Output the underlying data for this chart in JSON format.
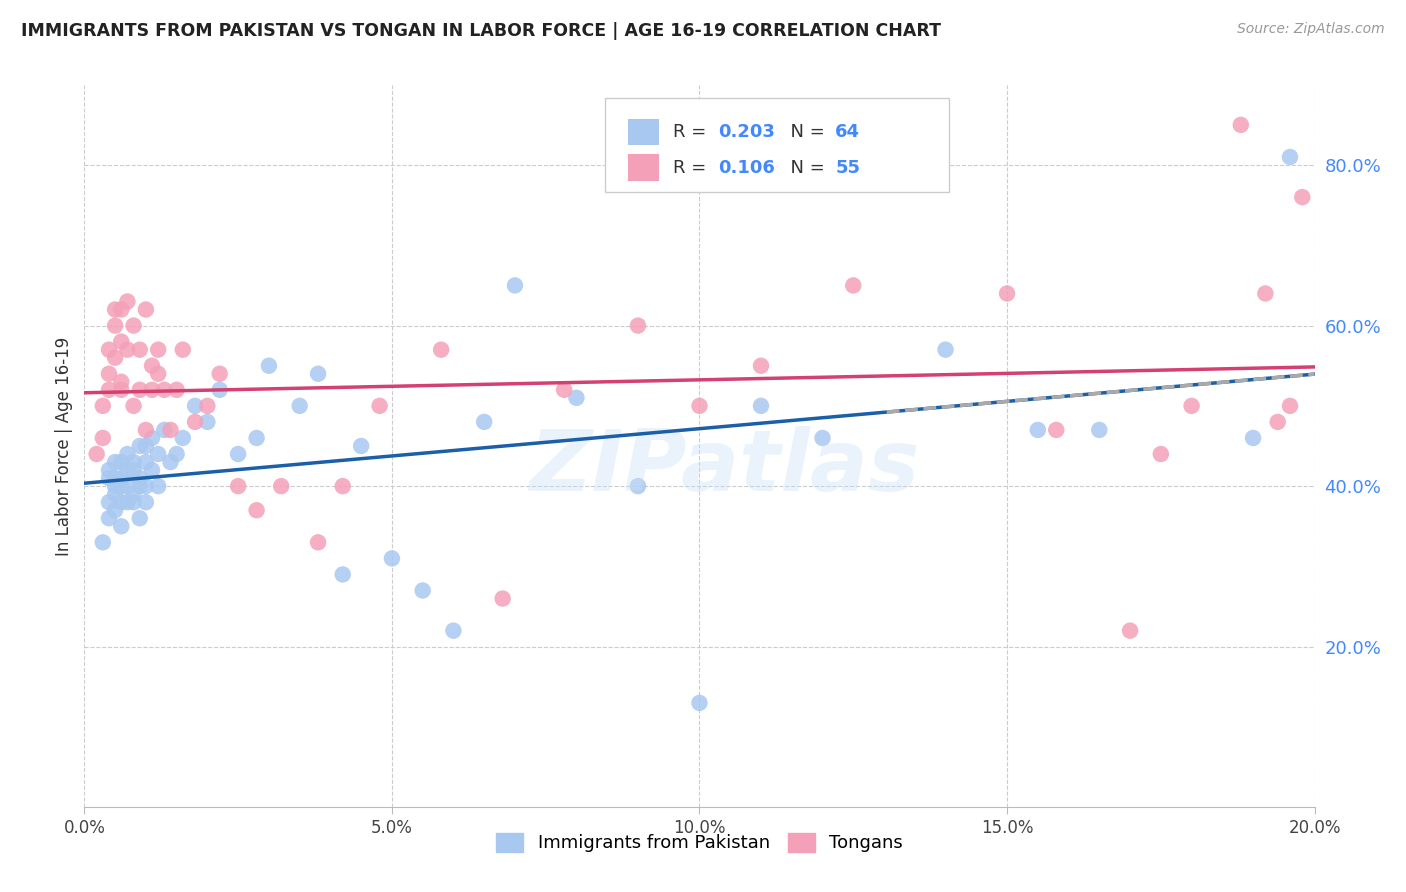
{
  "title": "IMMIGRANTS FROM PAKISTAN VS TONGAN IN LABOR FORCE | AGE 16-19 CORRELATION CHART",
  "source": "Source: ZipAtlas.com",
  "ylabel": "In Labor Force | Age 16-19",
  "xlim": [
    0.0,
    0.2
  ],
  "ylim": [
    0.0,
    0.9
  ],
  "xtick_labels": [
    "0.0%",
    "",
    "5.0%",
    "",
    "10.0%",
    "",
    "15.0%",
    "",
    "20.0%"
  ],
  "xtick_values": [
    0.0,
    0.025,
    0.05,
    0.075,
    0.1,
    0.125,
    0.15,
    0.175,
    0.2
  ],
  "xtick_major_labels": [
    "0.0%",
    "5.0%",
    "10.0%",
    "15.0%",
    "20.0%"
  ],
  "xtick_major_values": [
    0.0,
    0.05,
    0.1,
    0.15,
    0.2
  ],
  "ytick_labels": [
    "20.0%",
    "40.0%",
    "60.0%",
    "80.0%"
  ],
  "ytick_values": [
    0.2,
    0.4,
    0.6,
    0.8
  ],
  "legend_labels": [
    "Immigrants from Pakistan",
    "Tongans"
  ],
  "R_pakistan": 0.203,
  "N_pakistan": 64,
  "R_tongan": 0.106,
  "N_tongan": 55,
  "pakistan_color": "#a8c8f0",
  "tongan_color": "#f4a0b8",
  "pakistan_line_color": "#1a5fa8",
  "tongan_line_color": "#d44070",
  "dashed_line_color": "#aaaaaa",
  "background_color": "#ffffff",
  "grid_color": "#cccccc",
  "watermark": "ZIPatlas",
  "pakistan_x": [
    0.003,
    0.004,
    0.004,
    0.004,
    0.004,
    0.005,
    0.005,
    0.005,
    0.005,
    0.005,
    0.006,
    0.006,
    0.006,
    0.006,
    0.006,
    0.007,
    0.007,
    0.007,
    0.007,
    0.008,
    0.008,
    0.008,
    0.008,
    0.009,
    0.009,
    0.009,
    0.009,
    0.01,
    0.01,
    0.01,
    0.01,
    0.011,
    0.011,
    0.012,
    0.012,
    0.013,
    0.014,
    0.015,
    0.016,
    0.018,
    0.02,
    0.022,
    0.025,
    0.028,
    0.03,
    0.035,
    0.038,
    0.042,
    0.045,
    0.05,
    0.055,
    0.06,
    0.065,
    0.07,
    0.08,
    0.09,
    0.1,
    0.11,
    0.12,
    0.14,
    0.155,
    0.165,
    0.19,
    0.196
  ],
  "pakistan_y": [
    0.33,
    0.41,
    0.38,
    0.42,
    0.36,
    0.4,
    0.41,
    0.39,
    0.43,
    0.37,
    0.4,
    0.43,
    0.38,
    0.41,
    0.35,
    0.44,
    0.4,
    0.38,
    0.42,
    0.43,
    0.39,
    0.42,
    0.38,
    0.45,
    0.41,
    0.4,
    0.36,
    0.43,
    0.4,
    0.45,
    0.38,
    0.46,
    0.42,
    0.44,
    0.4,
    0.47,
    0.43,
    0.44,
    0.46,
    0.5,
    0.48,
    0.52,
    0.44,
    0.46,
    0.55,
    0.5,
    0.54,
    0.29,
    0.45,
    0.31,
    0.27,
    0.22,
    0.48,
    0.65,
    0.51,
    0.4,
    0.13,
    0.5,
    0.46,
    0.57,
    0.47,
    0.47,
    0.46,
    0.81
  ],
  "tongan_x": [
    0.002,
    0.003,
    0.003,
    0.004,
    0.004,
    0.004,
    0.005,
    0.005,
    0.005,
    0.006,
    0.006,
    0.006,
    0.006,
    0.007,
    0.007,
    0.008,
    0.008,
    0.009,
    0.009,
    0.01,
    0.01,
    0.011,
    0.011,
    0.012,
    0.012,
    0.013,
    0.014,
    0.015,
    0.016,
    0.018,
    0.02,
    0.022,
    0.025,
    0.028,
    0.032,
    0.038,
    0.042,
    0.048,
    0.058,
    0.068,
    0.078,
    0.09,
    0.1,
    0.11,
    0.125,
    0.15,
    0.158,
    0.17,
    0.175,
    0.18,
    0.188,
    0.192,
    0.194,
    0.196,
    0.198
  ],
  "tongan_y": [
    0.44,
    0.5,
    0.46,
    0.54,
    0.52,
    0.57,
    0.56,
    0.6,
    0.62,
    0.58,
    0.52,
    0.62,
    0.53,
    0.63,
    0.57,
    0.5,
    0.6,
    0.52,
    0.57,
    0.47,
    0.62,
    0.55,
    0.52,
    0.57,
    0.54,
    0.52,
    0.47,
    0.52,
    0.57,
    0.48,
    0.5,
    0.54,
    0.4,
    0.37,
    0.4,
    0.33,
    0.4,
    0.5,
    0.57,
    0.26,
    0.52,
    0.6,
    0.5,
    0.55,
    0.65,
    0.64,
    0.47,
    0.22,
    0.44,
    0.5,
    0.85,
    0.64,
    0.48,
    0.5,
    0.76
  ]
}
